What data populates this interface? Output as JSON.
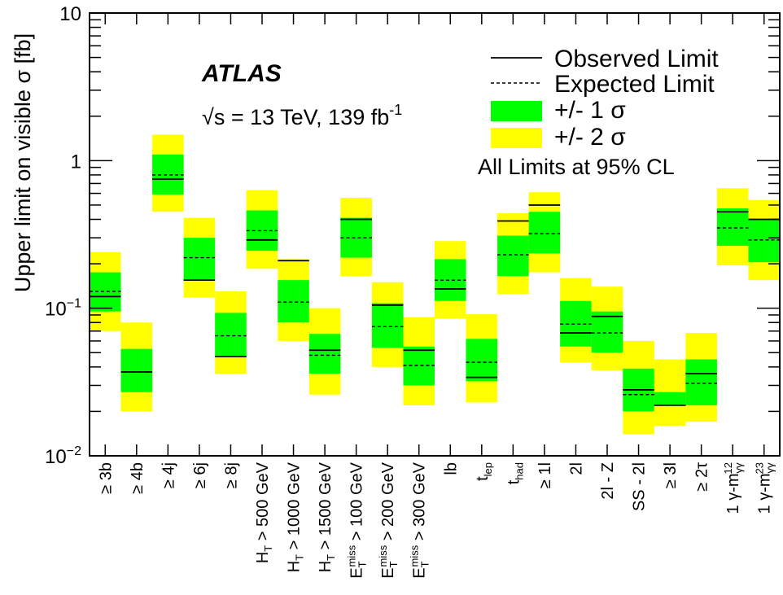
{
  "chart_data": {
    "type": "bar",
    "experiment": "ATLAS",
    "energy_label": "√s = 13 TeV, 139 fb",
    "energy_sup": "-1",
    "cl_note": "All Limits at 95% CL",
    "ylabel": "Upper limit on visible σ [fb]",
    "ylim": [
      0.01,
      10
    ],
    "yscale": "log",
    "yticks": [
      {
        "main": "10",
        "sup": ""
      },
      {
        "main": "1",
        "sup": ""
      },
      {
        "main": "10",
        "sup": "−1"
      },
      {
        "main": "10",
        "sup": "−2"
      }
    ],
    "legend": {
      "observed": "Observed Limit",
      "expected": "Expected Limit",
      "one_sigma": "+/- 1 σ",
      "two_sigma": "+/- 2 σ"
    },
    "colors": {
      "one_sigma": "#00ff00",
      "two_sigma": "#ffff00",
      "line": "#000000"
    },
    "categories": [
      {
        "pre": "≥ 3b"
      },
      {
        "pre": "≥ 4b"
      },
      {
        "pre": "≥ 4j"
      },
      {
        "pre": "≥ 6j"
      },
      {
        "pre": "≥ 8j"
      },
      {
        "pre": "H",
        "sub": "T",
        "post": " > 500 GeV"
      },
      {
        "pre": "H",
        "sub": "T",
        "post": " > 1000 GeV"
      },
      {
        "pre": "H",
        "sub": "T",
        "post": " > 1500 GeV"
      },
      {
        "pre": "E",
        "sub": "T",
        "sup": "miss",
        "post": " > 100 GeV"
      },
      {
        "pre": "E",
        "sub": "T",
        "sup": "miss",
        "post": " > 200 GeV"
      },
      {
        "pre": "E",
        "sub": "T",
        "sup": "miss",
        "post": " > 300 GeV"
      },
      {
        "pre": "lb"
      },
      {
        "pre": "t",
        "sub": "lep"
      },
      {
        "pre": "t",
        "sub": "had"
      },
      {
        "pre": "≥ 1l"
      },
      {
        "pre": "2l"
      },
      {
        "pre": "2l - Z"
      },
      {
        "pre": "SS - 2l"
      },
      {
        "pre": "≥ 3l"
      },
      {
        "pre": "≥ 2τ"
      },
      {
        "pre": "1 γ-m",
        "sub": "γγ",
        "sup": "12"
      },
      {
        "pre": "1 γ-m",
        "sub": "γγ",
        "sup": "23"
      }
    ],
    "observed": [
      0.12,
      0.037,
      0.75,
      0.155,
      0.047,
      0.29,
      0.21,
      0.052,
      0.4,
      0.105,
      0.052,
      0.135,
      0.034,
      0.39,
      0.5,
      0.068,
      0.088,
      0.028,
      0.022,
      0.036,
      0.45,
      0.4
    ],
    "expected": [
      0.13,
      0.037,
      0.8,
      0.22,
      0.065,
      0.335,
      0.11,
      0.048,
      0.3,
      0.075,
      0.041,
      0.155,
      0.043,
      0.23,
      0.32,
      0.078,
      0.068,
      0.026,
      0.022,
      0.031,
      0.35,
      0.29
    ],
    "one_sigma": [
      [
        0.095,
        0.175
      ],
      [
        0.027,
        0.053
      ],
      [
        0.59,
        1.1
      ],
      [
        0.155,
        0.3
      ],
      [
        0.047,
        0.093
      ],
      [
        0.245,
        0.46
      ],
      [
        0.08,
        0.155
      ],
      [
        0.036,
        0.067
      ],
      [
        0.22,
        0.41
      ],
      [
        0.054,
        0.108
      ],
      [
        0.03,
        0.055
      ],
      [
        0.112,
        0.215
      ],
      [
        0.032,
        0.062
      ],
      [
        0.165,
        0.31
      ],
      [
        0.235,
        0.45
      ],
      [
        0.055,
        0.112
      ],
      [
        0.05,
        0.095
      ],
      [
        0.02,
        0.039
      ],
      [
        0.022,
        0.027
      ],
      [
        0.022,
        0.045
      ],
      [
        0.265,
        0.475
      ],
      [
        0.205,
        0.4
      ]
    ],
    "two_sigma": [
      [
        0.07,
        0.24
      ],
      [
        0.02,
        0.08
      ],
      [
        0.45,
        1.5
      ],
      [
        0.118,
        0.41
      ],
      [
        0.036,
        0.13
      ],
      [
        0.185,
        0.63
      ],
      [
        0.06,
        0.215
      ],
      [
        0.026,
        0.1
      ],
      [
        0.165,
        0.56
      ],
      [
        0.04,
        0.15
      ],
      [
        0.022,
        0.087
      ],
      [
        0.085,
        0.285
      ],
      [
        0.023,
        0.091
      ],
      [
        0.125,
        0.44
      ],
      [
        0.175,
        0.61
      ],
      [
        0.043,
        0.16
      ],
      [
        0.038,
        0.14
      ],
      [
        0.014,
        0.06
      ],
      [
        0.016,
        0.045
      ],
      [
        0.017,
        0.068
      ],
      [
        0.195,
        0.65
      ],
      [
        0.155,
        0.54
      ]
    ]
  }
}
